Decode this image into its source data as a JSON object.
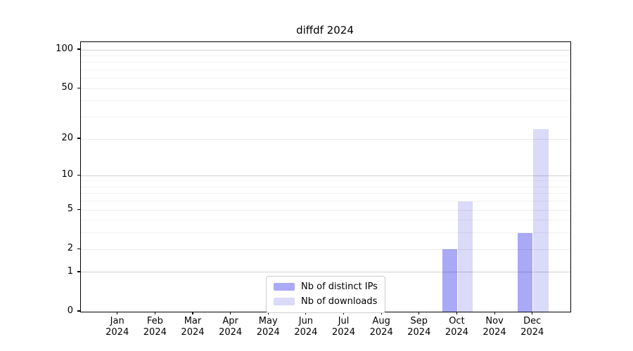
{
  "chart_data": {
    "type": "bar",
    "title": "diffdf 2024",
    "xlabel": "",
    "ylabel": "",
    "scale": "log1p",
    "grid": true,
    "legend_position": "lower center",
    "categories": [
      "Jan",
      "Feb",
      "Mar",
      "Apr",
      "May",
      "Jun",
      "Jul",
      "Aug",
      "Sep",
      "Oct",
      "Nov",
      "Dec"
    ],
    "year_label": "2024",
    "yticks": [
      0,
      1,
      2,
      5,
      10,
      20,
      50,
      100
    ],
    "minor_gridlines": [
      3,
      4,
      6,
      7,
      8,
      9,
      30,
      40,
      60,
      70,
      80,
      90
    ],
    "ylim": [
      0,
      115
    ],
    "series": [
      {
        "name": "Nb of distinct IPs",
        "color": "#a9a9f6",
        "values": [
          0,
          0,
          0,
          0,
          0,
          0,
          0,
          0,
          0,
          2,
          0,
          3
        ]
      },
      {
        "name": "Nb of downloads",
        "color": "#dadaf9",
        "values": [
          0,
          0,
          0,
          0,
          0,
          0,
          0,
          0,
          0,
          6,
          0,
          24
        ]
      }
    ]
  }
}
